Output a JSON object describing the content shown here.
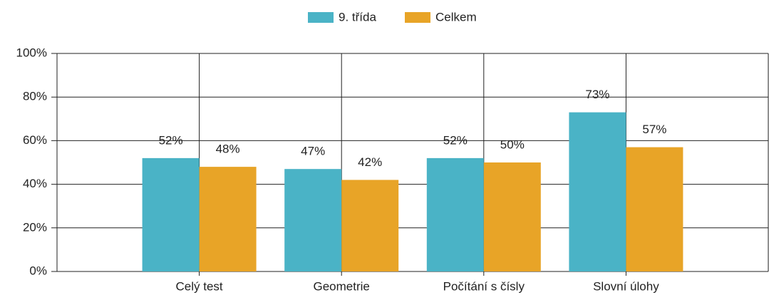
{
  "chart_data": {
    "type": "bar",
    "categories": [
      "Celý test",
      "Geometrie",
      "Počítání s čísly",
      "Slovní úlohy"
    ],
    "series": [
      {
        "name": "9. třída",
        "color": "#4ab3c6",
        "values": [
          52,
          47,
          52,
          73
        ],
        "value_labels": [
          "52%",
          "47%",
          "52%",
          "73%"
        ]
      },
      {
        "name": "Celkem",
        "color": "#e8a427",
        "values": [
          48,
          42,
          50,
          57
        ],
        "value_labels": [
          "48%",
          "42%",
          "50%",
          "57%"
        ]
      }
    ],
    "ylim": [
      0,
      100
    ],
    "yticks": [
      {
        "value": 0,
        "label": "0%"
      },
      {
        "value": 20,
        "label": "20%"
      },
      {
        "value": 40,
        "label": "40%"
      },
      {
        "value": 60,
        "label": "60%"
      },
      {
        "value": 80,
        "label": "80%"
      },
      {
        "value": 100,
        "label": "100%"
      }
    ],
    "grid": true,
    "legend": "top"
  }
}
